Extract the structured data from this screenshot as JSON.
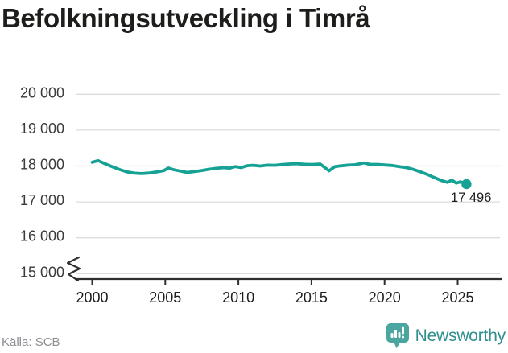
{
  "title": "Befolkningsutveckling i Timrå",
  "source": "Källa: SCB",
  "brand": {
    "name": "Newsworthy"
  },
  "colors": {
    "line": "#16a195",
    "grid": "#dcdcdc",
    "axis": "#2f2f2f",
    "text_dark": "#1d1d1b",
    "text_axis": "#3a3a3a",
    "text_muted": "#8e8e93",
    "brand_text": "#2f8e8e",
    "brand_icon": "#4ba6a0"
  },
  "chart_data": {
    "type": "line",
    "title": "Befolkningsutveckling i Timrå",
    "xlabel": "",
    "ylabel": "",
    "grid": true,
    "axis_break": true,
    "ylim": [
      15000,
      20000
    ],
    "xlim": [
      2000,
      2026
    ],
    "y_ticks": {
      "values": [
        20000,
        19000,
        18000,
        17000,
        16000,
        15000
      ],
      "labels": [
        "20 000",
        "19 000",
        "18 000",
        "17 000",
        "16 000",
        "15 000"
      ]
    },
    "x_ticks": {
      "years": [
        2000,
        2005,
        2010,
        2015,
        2020,
        2025
      ],
      "labels": [
        "2000",
        "2005",
        "2010",
        "2015",
        "2020",
        "2025"
      ]
    },
    "end_annotation": "17 496",
    "end_value": 17496,
    "series": [
      {
        "name": "Befolkning i Timrå",
        "color": "#16a195",
        "points": [
          [
            2000.0,
            18105
          ],
          [
            2000.4,
            18150
          ],
          [
            2000.9,
            18060
          ],
          [
            2001.4,
            17975
          ],
          [
            2001.9,
            17900
          ],
          [
            2002.4,
            17835
          ],
          [
            2002.9,
            17800
          ],
          [
            2003.4,
            17790
          ],
          [
            2003.9,
            17805
          ],
          [
            2004.4,
            17835
          ],
          [
            2004.9,
            17870
          ],
          [
            2005.2,
            17945
          ],
          [
            2005.6,
            17895
          ],
          [
            2006.0,
            17860
          ],
          [
            2006.5,
            17820
          ],
          [
            2007.0,
            17845
          ],
          [
            2007.5,
            17875
          ],
          [
            2008.0,
            17910
          ],
          [
            2008.5,
            17935
          ],
          [
            2009.0,
            17955
          ],
          [
            2009.4,
            17940
          ],
          [
            2009.8,
            17985
          ],
          [
            2010.2,
            17955
          ],
          [
            2010.6,
            18010
          ],
          [
            2011.0,
            18020
          ],
          [
            2011.5,
            18000
          ],
          [
            2012.0,
            18025
          ],
          [
            2012.5,
            18020
          ],
          [
            2013.0,
            18040
          ],
          [
            2013.5,
            18055
          ],
          [
            2014.0,
            18065
          ],
          [
            2014.5,
            18050
          ],
          [
            2015.0,
            18040
          ],
          [
            2015.6,
            18055
          ],
          [
            2016.2,
            17865
          ],
          [
            2016.6,
            17985
          ],
          [
            2017.0,
            18005
          ],
          [
            2017.5,
            18025
          ],
          [
            2018.0,
            18035
          ],
          [
            2018.6,
            18085
          ],
          [
            2019.0,
            18045
          ],
          [
            2019.5,
            18045
          ],
          [
            2020.0,
            18030
          ],
          [
            2020.5,
            18015
          ],
          [
            2021.0,
            17985
          ],
          [
            2021.5,
            17955
          ],
          [
            2021.9,
            17915
          ],
          [
            2022.4,
            17845
          ],
          [
            2022.9,
            17770
          ],
          [
            2023.4,
            17680
          ],
          [
            2023.9,
            17595
          ],
          [
            2024.3,
            17545
          ],
          [
            2024.6,
            17610
          ],
          [
            2024.9,
            17525
          ],
          [
            2025.2,
            17560
          ],
          [
            2025.6,
            17496
          ]
        ]
      }
    ]
  }
}
